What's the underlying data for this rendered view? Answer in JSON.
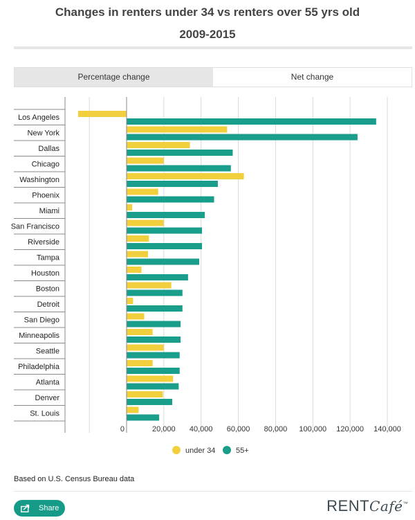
{
  "header": {
    "title_line1": "Changes in renters under 34 vs renters over 55 yrs old",
    "title_line2": "2009-2015"
  },
  "tabs": [
    {
      "label": "Percentage change",
      "active": false
    },
    {
      "label": "Net change",
      "active": true
    }
  ],
  "footer": {
    "source": "Based on U.S. Census Bureau data",
    "share_label": "Share",
    "brand_main": "RENT",
    "brand_script": "Café",
    "brand_tm": "™"
  },
  "colors": {
    "under34": "#f2cf3c",
    "over55": "#1a9e8c",
    "grid": "#d9d9d9",
    "axis": "#888888"
  },
  "chart_data": {
    "type": "bar",
    "orientation": "horizontal",
    "categories": [
      "Los Angeles",
      "New York",
      "Dallas",
      "Chicago",
      "Washington",
      "Phoenix",
      "Miami",
      "San Francisco",
      "Riverside",
      "Tampa",
      "Houston",
      "Boston",
      "Detroit",
      "San Diego",
      "Minneapolis",
      "Seattle",
      "Philadelphia",
      "Atlanta",
      "Denver",
      "St. Louis"
    ],
    "series": [
      {
        "name": "under 34",
        "values": [
          -26000,
          54000,
          34000,
          20000,
          63000,
          17000,
          3000,
          20000,
          12000,
          11500,
          8000,
          24000,
          3500,
          9500,
          14000,
          20000,
          14000,
          25000,
          19500,
          6500
        ]
      },
      {
        "name": "55+",
        "values": [
          134000,
          124000,
          57000,
          56000,
          49000,
          47000,
          42000,
          40500,
          40500,
          39000,
          33000,
          30000,
          30000,
          29000,
          29000,
          28500,
          28500,
          28000,
          24500,
          17500
        ]
      }
    ],
    "xlim": [
      -30000,
      145000
    ],
    "x_ticks": [
      0,
      20000,
      40000,
      60000,
      80000,
      100000,
      120000,
      140000
    ],
    "x_tick_labels": [
      "0",
      "20,000",
      "40,000",
      "60,000",
      "80,000",
      "100,000",
      "120,000",
      "140,000"
    ],
    "grid": true,
    "legend": {
      "position": "bottom",
      "labels": [
        "under 34",
        "55+"
      ]
    }
  }
}
